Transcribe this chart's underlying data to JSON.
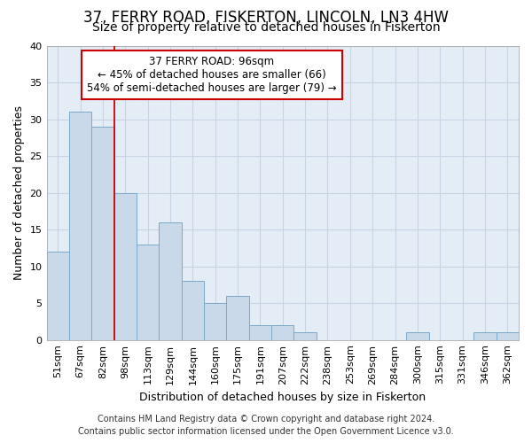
{
  "title": "37, FERRY ROAD, FISKERTON, LINCOLN, LN3 4HW",
  "subtitle": "Size of property relative to detached houses in Fiskerton",
  "xlabel": "Distribution of detached houses by size in Fiskerton",
  "ylabel": "Number of detached properties",
  "categories": [
    "51sqm",
    "67sqm",
    "82sqm",
    "98sqm",
    "113sqm",
    "129sqm",
    "144sqm",
    "160sqm",
    "175sqm",
    "191sqm",
    "207sqm",
    "222sqm",
    "238sqm",
    "253sqm",
    "269sqm",
    "284sqm",
    "300sqm",
    "315sqm",
    "331sqm",
    "346sqm",
    "362sqm"
  ],
  "values": [
    12,
    31,
    29,
    20,
    13,
    16,
    8,
    5,
    6,
    2,
    2,
    1,
    0,
    0,
    0,
    0,
    1,
    0,
    0,
    1,
    1
  ],
  "bar_color": "#c9d9ea",
  "bar_edge_color": "#7aaac8",
  "vline_x": 2.5,
  "annotation_line1": "37 FERRY ROAD: 96sqm",
  "annotation_line2": "← 45% of detached houses are smaller (66)",
  "annotation_line3": "54% of semi-detached houses are larger (79) →",
  "annotation_box_color": "#ffffff",
  "annotation_box_edge": "#cc0000",
  "vline_color": "#cc0000",
  "ylim": [
    0,
    40
  ],
  "yticks": [
    0,
    5,
    10,
    15,
    20,
    25,
    30,
    35,
    40
  ],
  "grid_color": "#c8d4e4",
  "background_color": "#e4ecf6",
  "footer_line1": "Contains HM Land Registry data © Crown copyright and database right 2024.",
  "footer_line2": "Contains public sector information licensed under the Open Government Licence v3.0.",
  "title_fontsize": 12,
  "subtitle_fontsize": 10,
  "axis_label_fontsize": 9,
  "tick_fontsize": 8,
  "annotation_fontsize": 8.5,
  "footer_fontsize": 7
}
